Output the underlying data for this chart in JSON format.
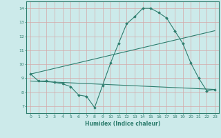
{
  "line1_x": [
    0,
    1,
    2,
    3,
    4,
    5,
    6,
    7,
    8,
    9,
    10,
    11,
    12,
    13,
    14,
    15,
    16,
    17,
    18,
    19,
    20,
    21,
    22,
    23
  ],
  "line1_y": [
    9.3,
    8.8,
    8.8,
    8.7,
    8.6,
    8.4,
    7.8,
    7.7,
    6.9,
    8.5,
    10.1,
    11.5,
    12.9,
    13.4,
    14.0,
    14.0,
    13.7,
    13.3,
    12.4,
    11.5,
    10.1,
    9.0,
    8.1,
    8.2
  ],
  "line2_x": [
    0,
    23
  ],
  "line2_y": [
    9.3,
    12.4
  ],
  "line3_x": [
    0,
    23
  ],
  "line3_y": [
    8.8,
    8.2
  ],
  "line_color": "#2e7d6e",
  "bg_color": "#cceaea",
  "grid_color": "#aed4d4",
  "axis_color": "#2e7d6e",
  "xlabel": "Humidex (Indice chaleur)",
  "xlim": [
    -0.5,
    23.5
  ],
  "ylim": [
    6.5,
    14.5
  ],
  "yticks": [
    7,
    8,
    9,
    10,
    11,
    12,
    13,
    14
  ],
  "xticks": [
    0,
    1,
    2,
    3,
    4,
    5,
    6,
    7,
    8,
    9,
    10,
    11,
    12,
    13,
    14,
    15,
    16,
    17,
    18,
    19,
    20,
    21,
    22,
    23
  ]
}
